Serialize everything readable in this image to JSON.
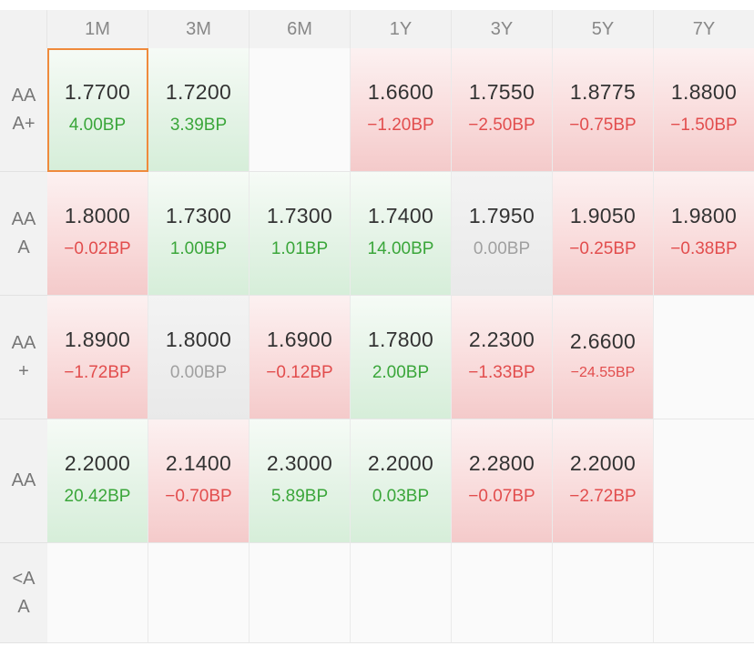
{
  "headers": [
    "1M",
    "3M",
    "6M",
    "1Y",
    "3Y",
    "5Y",
    "7Y"
  ],
  "rows": [
    {
      "label_lines": [
        "AA",
        "A+"
      ],
      "cells": [
        {
          "price": "1.7700",
          "change": "4.00BP",
          "trend": "up",
          "selected": true
        },
        {
          "price": "1.7200",
          "change": "3.39BP",
          "trend": "up"
        },
        null,
        {
          "price": "1.6600",
          "change": "−1.20BP",
          "trend": "down"
        },
        {
          "price": "1.7550",
          "change": "−2.50BP",
          "trend": "down"
        },
        {
          "price": "1.8775",
          "change": "−0.75BP",
          "trend": "down"
        },
        {
          "price": "1.8800",
          "change": "−1.50BP",
          "trend": "down"
        }
      ]
    },
    {
      "label_lines": [
        "AA",
        "A"
      ],
      "cells": [
        {
          "price": "1.8000",
          "change": "−0.02BP",
          "trend": "down"
        },
        {
          "price": "1.7300",
          "change": "1.00BP",
          "trend": "up"
        },
        {
          "price": "1.7300",
          "change": "1.01BP",
          "trend": "up"
        },
        {
          "price": "1.7400",
          "change": "14.00BP",
          "trend": "up"
        },
        {
          "price": "1.7950",
          "change": "0.00BP",
          "trend": "flat"
        },
        {
          "price": "1.9050",
          "change": "−0.25BP",
          "trend": "down"
        },
        {
          "price": "1.9800",
          "change": "−0.38BP",
          "trend": "down"
        }
      ]
    },
    {
      "label_lines": [
        "AA",
        "+"
      ],
      "cells": [
        {
          "price": "1.8900",
          "change": "−1.72BP",
          "trend": "down"
        },
        {
          "price": "1.8000",
          "change": "0.00BP",
          "trend": "flat"
        },
        {
          "price": "1.6900",
          "change": "−0.12BP",
          "trend": "down"
        },
        {
          "price": "1.7800",
          "change": "2.00BP",
          "trend": "up"
        },
        {
          "price": "2.2300",
          "change": "−1.33BP",
          "trend": "down"
        },
        {
          "price": "2.6600",
          "change": "−24.55BP",
          "trend": "down",
          "small": true
        },
        null
      ]
    },
    {
      "label_lines": [
        "AA"
      ],
      "cells": [
        {
          "price": "2.2000",
          "change": "20.42BP",
          "trend": "up"
        },
        {
          "price": "2.1400",
          "change": "−0.70BP",
          "trend": "down"
        },
        {
          "price": "2.3000",
          "change": "5.89BP",
          "trend": "up"
        },
        {
          "price": "2.2000",
          "change": "0.03BP",
          "trend": "up"
        },
        {
          "price": "2.2800",
          "change": "−0.07BP",
          "trend": "down"
        },
        {
          "price": "2.2000",
          "change": "−2.72BP",
          "trend": "down"
        },
        null
      ]
    },
    {
      "label_lines": [
        "<A",
        "A"
      ],
      "cells": [
        null,
        null,
        null,
        null,
        null,
        null,
        null
      ]
    }
  ],
  "colors": {
    "up": "#3aa63a",
    "down": "#e24d4d",
    "flat": "#a0a0a0",
    "selected_border": "#ef8a3c"
  }
}
